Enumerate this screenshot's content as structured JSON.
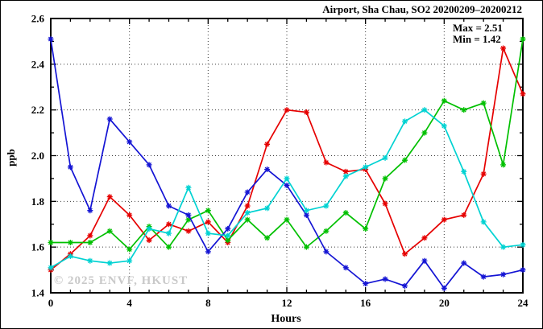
{
  "title": "Airport, Sha Chau, SO2 20200209–20200212",
  "annotation": {
    "max_label": "Max = 2.51",
    "min_label": "Min = 1.42"
  },
  "watermark": "© 2025 ENVF, HKUST",
  "chart_data": {
    "type": "line",
    "title": "Airport, Sha Chau, SO2 20200209–20200212",
    "xlabel": "Hours",
    "ylabel": "ppb",
    "xlim": [
      0,
      24
    ],
    "ylim": [
      1.4,
      2.6
    ],
    "grid": "dotted-at-major-ticks",
    "legend": "none",
    "marker": "asterisk",
    "stats": {
      "max": 2.51,
      "min": 1.42
    },
    "x_ticks": {
      "values": [
        0,
        4,
        8,
        12,
        16,
        20,
        24
      ],
      "labels": [
        "0",
        "4",
        "8",
        "12",
        "16",
        "20",
        "24"
      ]
    },
    "y_ticks": {
      "values": [
        1.4,
        1.6,
        1.8,
        2.0,
        2.2,
        2.4,
        2.6
      ],
      "labels": [
        "1.4",
        "1.6",
        "1.8",
        "2.0",
        "2.2",
        "2.4",
        "2.6"
      ]
    },
    "x": [
      0,
      1,
      2,
      3,
      4,
      5,
      6,
      7,
      8,
      9,
      10,
      11,
      12,
      13,
      14,
      15,
      16,
      17,
      18,
      19,
      20,
      21,
      22,
      23,
      24
    ],
    "series": [
      {
        "name": "red",
        "color": "#e60000",
        "values": [
          1.5,
          1.57,
          1.65,
          1.82,
          1.74,
          1.63,
          1.7,
          1.67,
          1.71,
          1.62,
          1.78,
          2.05,
          2.2,
          2.19,
          1.97,
          1.93,
          1.94,
          1.79,
          1.57,
          1.64,
          1.72,
          1.74,
          1.92,
          2.47,
          2.27
        ]
      },
      {
        "name": "green",
        "color": "#00c000",
        "values": [
          1.62,
          1.62,
          1.62,
          1.67,
          1.59,
          1.69,
          1.6,
          1.72,
          1.76,
          1.63,
          1.72,
          1.64,
          1.72,
          1.6,
          1.67,
          1.75,
          1.68,
          1.9,
          1.98,
          2.1,
          2.24,
          2.2,
          2.23,
          1.96,
          2.51
        ]
      },
      {
        "name": "blue",
        "color": "#1414d4",
        "values": [
          2.51,
          1.95,
          1.76,
          2.16,
          2.06,
          1.96,
          1.78,
          1.74,
          1.58,
          1.68,
          1.84,
          1.94,
          1.87,
          1.74,
          1.58,
          1.51,
          1.44,
          1.46,
          1.43,
          1.54,
          1.42,
          1.53,
          1.47,
          1.48,
          1.5
        ]
      },
      {
        "name": "cyan",
        "color": "#00d2d2",
        "values": [
          1.51,
          1.56,
          1.54,
          1.53,
          1.54,
          1.68,
          1.66,
          1.86,
          1.66,
          1.65,
          1.75,
          1.77,
          1.9,
          1.76,
          1.78,
          1.91,
          1.95,
          1.99,
          2.15,
          2.2,
          2.13,
          1.93,
          1.71,
          1.6,
          1.61
        ]
      }
    ]
  }
}
